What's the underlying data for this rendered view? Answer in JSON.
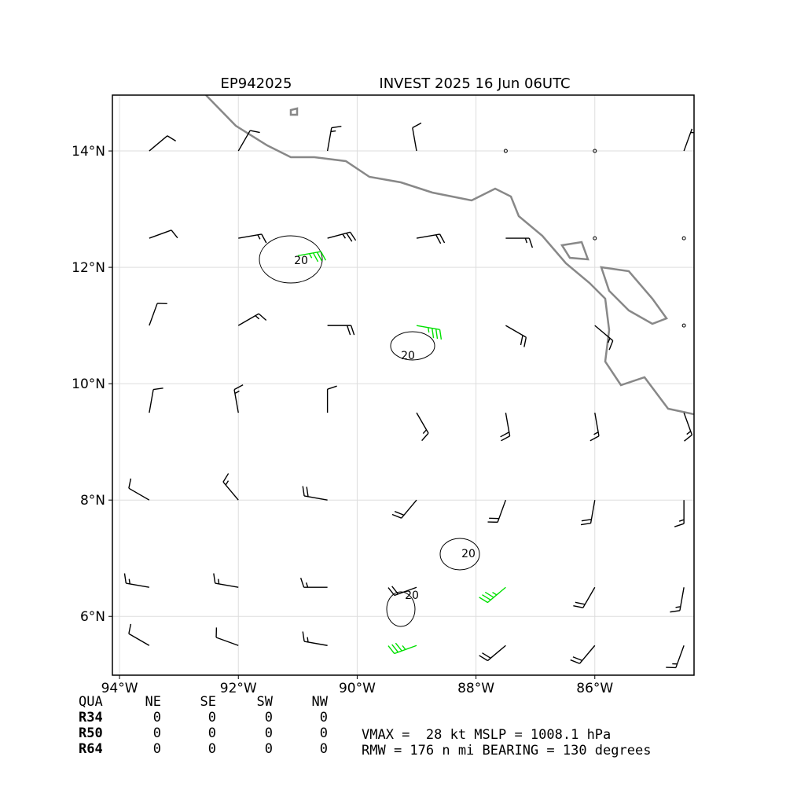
{
  "chart_data": {
    "type": "wind_barbs",
    "title_left": "EP942025",
    "title_right": "INVEST 2025 16 Jun 06UTC",
    "xlim": [
      -94.12,
      -84.33
    ],
    "ylim": [
      4.99,
      14.96
    ],
    "xticks": [
      {
        "value": -94,
        "label": "94°W"
      },
      {
        "value": -92,
        "label": "92°W"
      },
      {
        "value": -90,
        "label": "90°W"
      },
      {
        "value": -88,
        "label": "88°W"
      },
      {
        "value": -86,
        "label": "86°W"
      }
    ],
    "yticks": [
      {
        "value": 6,
        "label": "6°N"
      },
      {
        "value": 8,
        "label": "8°N"
      },
      {
        "value": 10,
        "label": "10°N"
      },
      {
        "value": 12,
        "label": "12°N"
      },
      {
        "value": 14,
        "label": "14°N"
      }
    ],
    "grid": true,
    "barbs": [
      {
        "color": "#000000",
        "points": [
          [
            -93.5,
            14,
            50,
            10
          ],
          [
            -92,
            14,
            30,
            10
          ],
          [
            -90.5,
            14,
            10,
            15
          ],
          [
            -89,
            14,
            350,
            10
          ],
          [
            -87.5,
            14,
            0,
            0
          ],
          [
            -86,
            14,
            0,
            0
          ],
          [
            -84.5,
            14,
            20,
            5
          ],
          [
            -93.5,
            12.5,
            70,
            10
          ],
          [
            -92,
            12.5,
            80,
            15
          ],
          [
            -90.5,
            12.5,
            75,
            25
          ],
          [
            -89,
            12.5,
            80,
            20
          ],
          [
            -87.5,
            12.5,
            90,
            15
          ],
          [
            -86,
            12.5,
            0,
            0
          ],
          [
            -84.5,
            12.5,
            0,
            0
          ],
          [
            -93.5,
            11,
            20,
            10
          ],
          [
            -92,
            11,
            60,
            15
          ],
          [
            -90.5,
            11,
            90,
            20
          ],
          [
            -87.5,
            11,
            120,
            20
          ],
          [
            -86,
            11,
            130,
            15
          ],
          [
            -84.5,
            11,
            0,
            0
          ],
          [
            -93.5,
            9.5,
            10,
            10
          ],
          [
            -92,
            9.5,
            350,
            15
          ],
          [
            -90.5,
            9.5,
            0,
            10
          ],
          [
            -89,
            9.5,
            150,
            15
          ],
          [
            -87.5,
            9.5,
            170,
            20
          ],
          [
            -86,
            9.5,
            170,
            15
          ],
          [
            -84.5,
            9.5,
            160,
            15
          ],
          [
            -93.5,
            8,
            300,
            10
          ],
          [
            -92,
            8,
            320,
            15
          ],
          [
            -90.5,
            8,
            280,
            20
          ],
          [
            -89,
            8,
            220,
            20
          ],
          [
            -87.5,
            8,
            200,
            20
          ],
          [
            -86,
            8,
            190,
            20
          ],
          [
            -84.5,
            8,
            180,
            15
          ],
          [
            -93.5,
            6.5,
            280,
            15
          ],
          [
            -92,
            6.5,
            280,
            15
          ],
          [
            -90.5,
            6.5,
            270,
            15
          ],
          [
            -89,
            6.5,
            250,
            20
          ],
          [
            -86,
            6.5,
            210,
            20
          ],
          [
            -84.5,
            6.5,
            190,
            15
          ],
          [
            -93.5,
            5.5,
            300,
            10
          ],
          [
            -92,
            5.5,
            290,
            10
          ],
          [
            -90.5,
            5.5,
            280,
            15
          ],
          [
            -87.5,
            5.5,
            230,
            20
          ],
          [
            -86,
            5.5,
            220,
            20
          ],
          [
            -84.5,
            5.5,
            200,
            15
          ]
        ]
      },
      {
        "color": "#00e000",
        "points": [
          [
            -89,
            11,
            100,
            35
          ],
          [
            -91,
            12.2,
            80,
            35
          ],
          [
            -87.5,
            6.5,
            230,
            35
          ],
          [
            -89,
            5.5,
            250,
            35
          ]
        ]
      }
    ],
    "contour_labels": [
      "20",
      "20",
      "20",
      "20"
    ],
    "quadrant_table": {
      "header": [
        "QUA",
        "NE",
        "SE",
        "SW",
        "NW"
      ],
      "rows": [
        [
          "R34",
          0,
          0,
          0,
          0
        ],
        [
          "R50",
          0,
          0,
          0,
          0
        ],
        [
          "R64",
          0,
          0,
          0,
          0
        ]
      ]
    },
    "stats": [
      "VMAX =  28 kt MSLP = 1008.1 hPa",
      "RMW = 176 n mi BEARING = 130 degrees"
    ]
  }
}
